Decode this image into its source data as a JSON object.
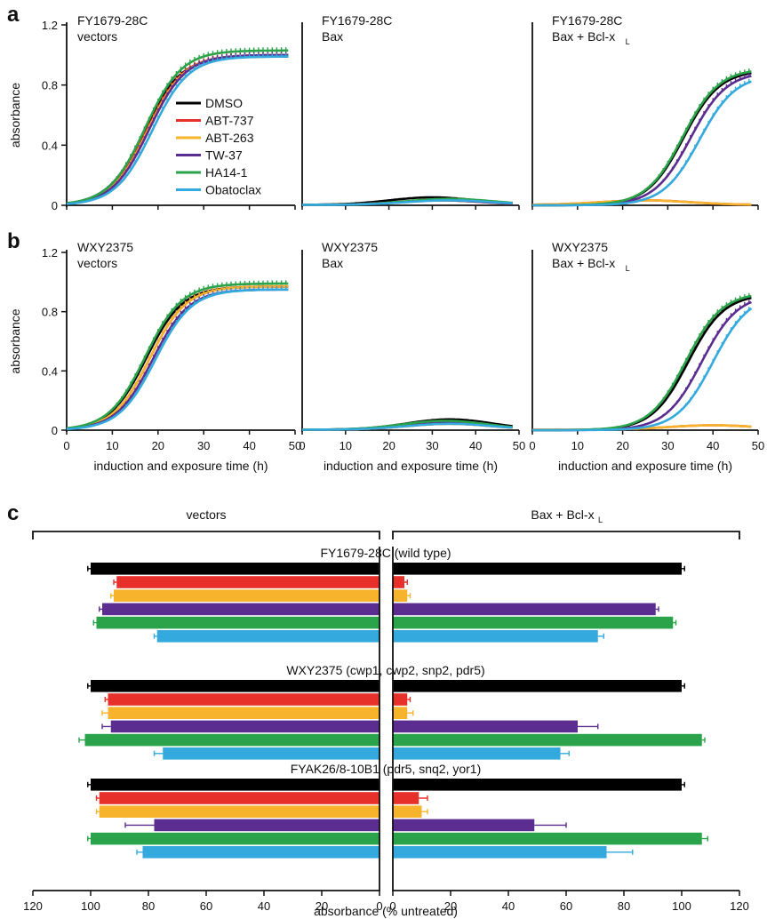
{
  "colors": {
    "DMSO": "#000000",
    "ABT-737": "#e8302a",
    "ABT-263": "#f7b32b",
    "TW-37": "#5b2d90",
    "HA14-1": "#2aa34a",
    "Obatoclax": "#33a9de"
  },
  "legend": {
    "placement": "inside panel a vectors, lower-right",
    "entries": [
      "DMSO",
      "ABT-737",
      "ABT-263",
      "TW-37",
      "HA14-1",
      "Obatoclax"
    ]
  },
  "panels": {
    "a": {
      "label": "a",
      "titles": [
        [
          "FY1679-28C",
          "vectors"
        ],
        [
          "FY1679-28C",
          "Bax"
        ],
        [
          "FY1679-28C",
          "Bax + Bcl-x",
          "L"
        ]
      ]
    },
    "b": {
      "label": "b",
      "titles": [
        [
          "WXY2375",
          "vectors"
        ],
        [
          "WXY2375",
          "Bax"
        ],
        [
          "WXY2375",
          "Bax + Bcl-x",
          "L"
        ]
      ]
    },
    "c": {
      "label": "c",
      "left_bracket": "vectors",
      "right_bracket_main": "Bax + Bcl-x",
      "right_bracket_sub": "L",
      "groups": [
        "FY1679-28C (wild type)",
        "WXY2375 (cwp1, cwp2, snp2, pdr5)",
        "FYAK26/8-10B1 (pdr5, snq2, yor1)"
      ],
      "xlabel": "absorbance (% untreated)",
      "xticks_left": [
        "120",
        "100",
        "80",
        "60",
        "40",
        "20",
        "0"
      ],
      "xticks_right": [
        "0",
        "20",
        "40",
        "60",
        "80",
        "100",
        "120"
      ]
    }
  },
  "axes": {
    "ylabel": "absorbance",
    "yticks": [
      "0",
      "0.4",
      "0.8",
      "1.2"
    ],
    "xticks": [
      "0",
      "10",
      "20",
      "30",
      "40",
      "50"
    ],
    "xlabel": "induction and exposure time (h)"
  },
  "chart_data": [
    {
      "type": "line",
      "panel": "a-vectors",
      "x_range": [
        0,
        50
      ],
      "ylim": [
        0,
        1.2
      ],
      "series": [
        {
          "name": "DMSO",
          "midpoint": 17,
          "plateau": 0.99
        },
        {
          "name": "ABT-737",
          "midpoint": 17.6,
          "plateau": 1.0
        },
        {
          "name": "ABT-263",
          "midpoint": 17.8,
          "plateau": 1.0
        },
        {
          "name": "TW-37",
          "midpoint": 18,
          "plateau": 1.0
        },
        {
          "name": "HA14-1",
          "midpoint": 17.2,
          "plateau": 1.03
        },
        {
          "name": "Obatoclax",
          "midpoint": 18.7,
          "plateau": 0.99
        }
      ]
    },
    {
      "type": "line",
      "panel": "a-bax",
      "x_range": [
        0,
        50
      ],
      "ylim": [
        0,
        1.2
      ],
      "series": [
        {
          "name": "DMSO",
          "peak": 0.05,
          "peak_time": 30
        },
        {
          "name": "ABT-737",
          "peak": 0.03,
          "peak_time": 32
        },
        {
          "name": "ABT-263",
          "peak": 0.03,
          "peak_time": 32
        },
        {
          "name": "TW-37",
          "peak": 0.03,
          "peak_time": 32
        },
        {
          "name": "HA14-1",
          "peak": 0.04,
          "peak_time": 34
        },
        {
          "name": "Obatoclax",
          "peak": 0.03,
          "peak_time": 34
        }
      ]
    },
    {
      "type": "line",
      "panel": "a-bax-bclxl",
      "x_range": [
        0,
        50
      ],
      "ylim": [
        0,
        1.2
      ],
      "series": [
        {
          "name": "DMSO",
          "midpoint": 33.5,
          "plateau": 0.9
        },
        {
          "name": "ABT-737",
          "peak": 0.03,
          "peak_time": 25
        },
        {
          "name": "ABT-263",
          "peak": 0.03,
          "peak_time": 25
        },
        {
          "name": "TW-37",
          "midpoint": 35,
          "plateau": 0.89
        },
        {
          "name": "HA14-1",
          "midpoint": 33.3,
          "plateau": 0.91
        },
        {
          "name": "Obatoclax",
          "midpoint": 37,
          "plateau": 0.87
        }
      ]
    },
    {
      "type": "line",
      "panel": "b-vectors",
      "x_range": [
        0,
        50
      ],
      "ylim": [
        0,
        1.2
      ],
      "series": [
        {
          "name": "DMSO",
          "midpoint": 17.4,
          "plateau": 0.97
        },
        {
          "name": "ABT-737",
          "midpoint": 18.2,
          "plateau": 0.97
        },
        {
          "name": "ABT-263",
          "midpoint": 18.2,
          "plateau": 0.97
        },
        {
          "name": "TW-37",
          "midpoint": 18.8,
          "plateau": 0.95
        },
        {
          "name": "HA14-1",
          "midpoint": 17.2,
          "plateau": 0.99
        },
        {
          "name": "Obatoclax",
          "midpoint": 19.4,
          "plateau": 0.95
        }
      ]
    },
    {
      "type": "line",
      "panel": "b-bax",
      "x_range": [
        0,
        50
      ],
      "ylim": [
        0,
        1.2
      ],
      "series": [
        {
          "name": "DMSO",
          "peak": 0.07,
          "peak_time": 34
        },
        {
          "name": "ABT-737",
          "peak": 0.04,
          "peak_time": 34
        },
        {
          "name": "ABT-263",
          "peak": 0.04,
          "peak_time": 34
        },
        {
          "name": "TW-37",
          "peak": 0.05,
          "peak_time": 34
        },
        {
          "name": "HA14-1",
          "peak": 0.06,
          "peak_time": 33
        },
        {
          "name": "Obatoclax",
          "peak": 0.04,
          "peak_time": 34
        }
      ]
    },
    {
      "type": "line",
      "panel": "b-bax-bclxl",
      "x_range": [
        0,
        50
      ],
      "ylim": [
        0,
        1.2
      ],
      "series": [
        {
          "name": "DMSO",
          "midpoint": 34.5,
          "plateau": 0.92
        },
        {
          "name": "ABT-737",
          "peak": 0.03,
          "peak_time": 40
        },
        {
          "name": "ABT-263",
          "peak": 0.03,
          "peak_time": 40
        },
        {
          "name": "TW-37",
          "midpoint": 37.5,
          "plateau": 0.92
        },
        {
          "name": "HA14-1",
          "midpoint": 34,
          "plateau": 0.93
        },
        {
          "name": "Obatoclax",
          "midpoint": 40,
          "plateau": 0.92
        }
      ]
    },
    {
      "type": "bar",
      "panel": "c",
      "orientation": "horizontal",
      "xlim": [
        0,
        120
      ],
      "series_names": [
        "DMSO",
        "ABT-737",
        "ABT-263",
        "TW-37",
        "HA14-1",
        "Obatoclax"
      ],
      "groups": [
        {
          "name": "FY1679-28C (wild type)",
          "vectors": [
            100,
            91,
            92,
            96,
            98,
            77
          ],
          "vectors_err": [
            1,
            1,
            1,
            1,
            1,
            1
          ],
          "bax_bclxl": [
            100,
            4,
            5,
            91,
            97,
            71
          ],
          "bax_bclxl_err": [
            1,
            1,
            1,
            1,
            1,
            2
          ]
        },
        {
          "name": "WXY2375 (cwp1, cwp2, snp2, pdr5)",
          "vectors": [
            100,
            94,
            94,
            93,
            102,
            75
          ],
          "vectors_err": [
            1,
            1,
            2,
            3,
            2,
            3
          ],
          "bax_bclxl": [
            100,
            5,
            5,
            64,
            107,
            58
          ],
          "bax_bclxl_err": [
            1,
            1,
            2,
            7,
            1,
            3
          ]
        },
        {
          "name": "FYAK26/8-10B1 (pdr5, snq2, yor1)",
          "vectors": [
            100,
            97,
            97,
            78,
            100,
            82
          ],
          "vectors_err": [
            1,
            1,
            1,
            10,
            1,
            2
          ],
          "bax_bclxl": [
            100,
            9,
            10,
            49,
            107,
            74
          ],
          "bax_bclxl_err": [
            1,
            3,
            2,
            11,
            2,
            9
          ]
        }
      ]
    }
  ]
}
